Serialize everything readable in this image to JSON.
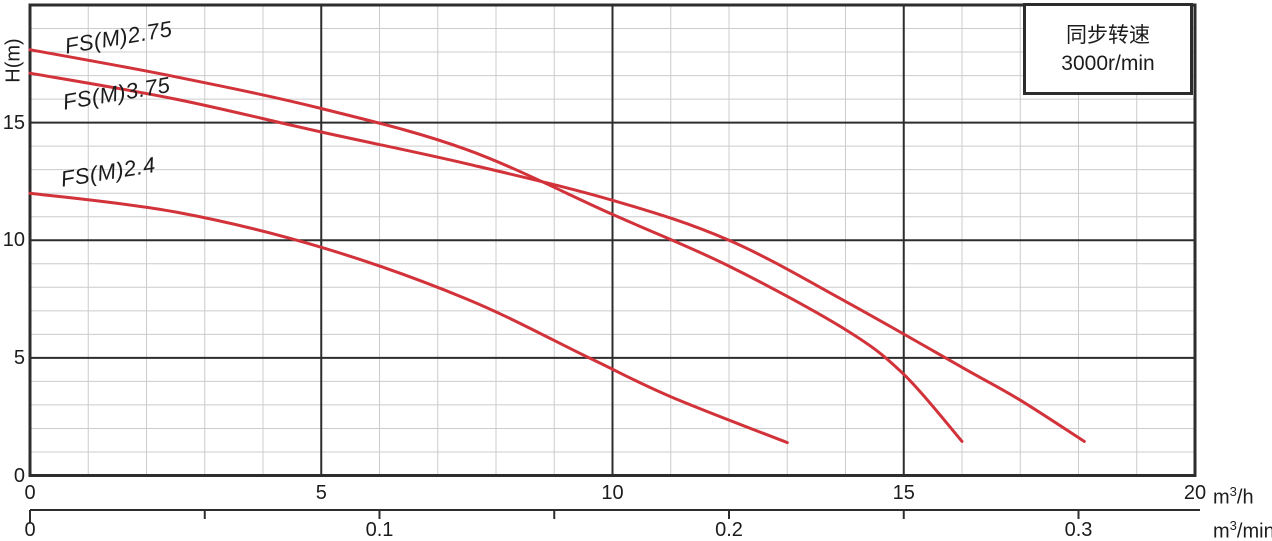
{
  "legend": {
    "line1": "同步转速",
    "line2": "3000r/min"
  },
  "units": {
    "h": {
      "base": "m",
      "sup": "3",
      "rest": "/h"
    },
    "min": {
      "base": "m",
      "sup": "3",
      "rest": "/min"
    }
  },
  "chart_data": {
    "type": "line",
    "title": "",
    "ylabel": "H(m)",
    "xlabel_primary": "m3/h",
    "xlabel_secondary": "m3/min",
    "xlim": [
      0,
      20
    ],
    "ylim": [
      0,
      20
    ],
    "minor_step": 1,
    "grid": {
      "minor_color": "#cccccc",
      "major_color": "#2d2d2d",
      "border_color": "#2d2d2d"
    },
    "x_major_ticks": {
      "values": [
        0,
        5,
        10,
        15,
        20
      ],
      "labels": [
        "0",
        "5",
        "10",
        "15",
        "20"
      ]
    },
    "y_major_ticks": {
      "values": [
        0,
        5,
        10,
        15
      ],
      "labels": [
        "0",
        "5",
        "10",
        "15"
      ]
    },
    "x2_axis": {
      "tick_values": [
        0,
        0.05,
        0.1,
        0.15,
        0.2,
        0.25,
        0.3
      ],
      "labeled_values": [
        0,
        0.1,
        0.2,
        0.3
      ],
      "labels": [
        "0",
        "0.1",
        "0.2",
        "0.3"
      ]
    },
    "legend_position": "top-right",
    "curve_color": "#d2333a",
    "series": [
      {
        "name": "FS(M)2.75",
        "points": [
          [
            0,
            18.1
          ],
          [
            2.5,
            16.95
          ],
          [
            5,
            15.6
          ],
          [
            7.5,
            13.85
          ],
          [
            10,
            11.1
          ],
          [
            12,
            8.9
          ],
          [
            14,
            6.2
          ],
          [
            15,
            4.3
          ],
          [
            16,
            1.45
          ]
        ]
      },
      {
        "name": "FS(M)3.75",
        "points": [
          [
            0,
            17.1
          ],
          [
            2.5,
            16.0
          ],
          [
            5,
            14.6
          ],
          [
            7.5,
            13.25
          ],
          [
            10,
            11.7
          ],
          [
            12,
            10.0
          ],
          [
            14,
            7.4
          ],
          [
            16,
            4.6
          ],
          [
            17,
            3.2
          ],
          [
            18.1,
            1.45
          ]
        ]
      },
      {
        "name": "FS(M)2.4",
        "points": [
          [
            0,
            12.0
          ],
          [
            2.5,
            11.2
          ],
          [
            5,
            9.7
          ],
          [
            7.5,
            7.5
          ],
          [
            9.6,
            5.0
          ],
          [
            11,
            3.35
          ],
          [
            13,
            1.4
          ]
        ]
      }
    ]
  }
}
